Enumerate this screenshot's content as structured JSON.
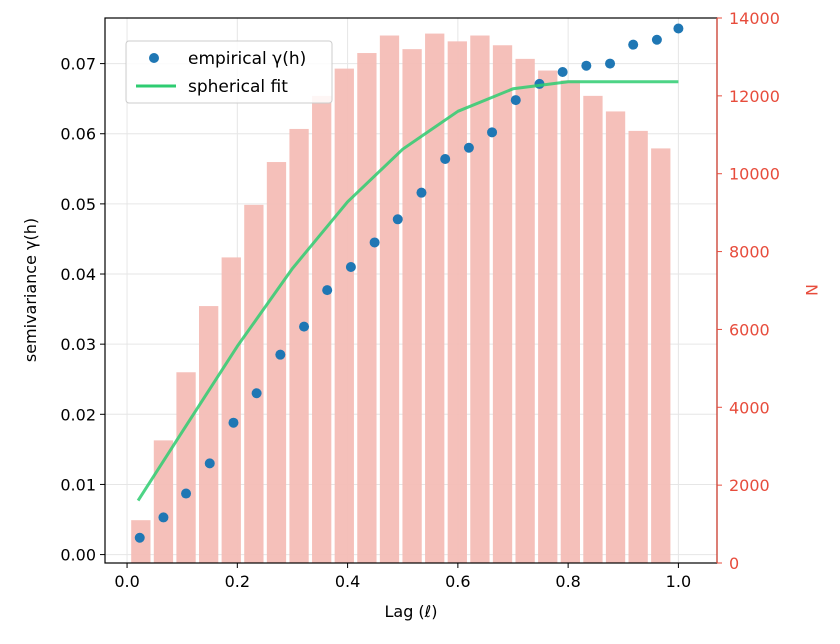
{
  "chart_data": {
    "type": "bar+scatter+line",
    "title": "",
    "xlabel": "Lag (ℓ)",
    "ylabel_left": "semivariance γ(h)",
    "ylabel_right": "N",
    "xlim": [
      -0.04,
      1.07
    ],
    "ylim_left": [
      -0.0012,
      0.0765
    ],
    "ylim_right": [
      0,
      14000
    ],
    "x_ticks": [
      "0.0",
      "0.2",
      "0.4",
      "0.6",
      "0.8",
      "1.0"
    ],
    "x_tick_values": [
      0,
      0.2,
      0.4,
      0.6,
      0.8,
      1.0
    ],
    "y_left_ticks": [
      "0.00",
      "0.01",
      "0.02",
      "0.03",
      "0.04",
      "0.05",
      "0.06",
      "0.07"
    ],
    "y_left_tick_values": [
      0,
      0.01,
      0.02,
      0.03,
      0.04,
      0.05,
      0.06,
      0.07
    ],
    "y_right_ticks": [
      "0",
      "2000",
      "4000",
      "6000",
      "8000",
      "10000",
      "12000",
      "14000"
    ],
    "y_right_tick_values": [
      0,
      2000,
      4000,
      6000,
      8000,
      10000,
      12000,
      14000
    ],
    "grid": true,
    "legend_position": "top-left",
    "colors": {
      "scatter": "#1f77b4",
      "fit": "#2ecc71",
      "bars": "#f4bdb6",
      "right_axis": "#e74c3c"
    },
    "bar_width": 0.035,
    "legend": [
      {
        "label": "empirical γ(h)",
        "kind": "marker"
      },
      {
        "label": "spherical fit",
        "kind": "line"
      }
    ],
    "series": [
      {
        "name": "N",
        "type": "bar",
        "axis": "right",
        "x": [
          0.025,
          0.066,
          0.107,
          0.148,
          0.189,
          0.23,
          0.271,
          0.312,
          0.353,
          0.394,
          0.435,
          0.476,
          0.517,
          0.558,
          0.599,
          0.64,
          0.681,
          0.722,
          0.763,
          0.804,
          0.845,
          0.886,
          0.927,
          0.968,
          1.009
        ],
        "values": [
          1100,
          3150,
          4900,
          6600,
          7850,
          9200,
          10300,
          11150,
          12000,
          12700,
          13100,
          13550,
          13200,
          13600,
          13400,
          13550,
          13300,
          12950,
          12650,
          12400,
          12000,
          11600,
          11100,
          10650,
          0
        ]
      },
      {
        "name": "empirical γ(h)",
        "type": "scatter",
        "axis": "left",
        "x": [
          0.023,
          0.066,
          0.107,
          0.15,
          0.193,
          0.235,
          0.278,
          0.321,
          0.363,
          0.406,
          0.449,
          0.491,
          0.534,
          0.577,
          0.62,
          0.662,
          0.705,
          0.748,
          0.79,
          0.833,
          0.876,
          0.918,
          0.961,
          1.0
        ],
        "values": [
          0.0024,
          0.0053,
          0.0087,
          0.013,
          0.0188,
          0.023,
          0.0285,
          0.0325,
          0.0377,
          0.041,
          0.0445,
          0.0478,
          0.0516,
          0.0564,
          0.058,
          0.0602,
          0.0648,
          0.0671,
          0.0688,
          0.0697,
          0.07,
          0.0727,
          0.0734,
          0.075
        ]
      },
      {
        "name": "spherical fit",
        "type": "line",
        "axis": "left",
        "x": [
          0.02,
          0.1,
          0.2,
          0.3,
          0.4,
          0.5,
          0.6,
          0.7,
          0.8,
          0.85,
          0.9,
          1.0
        ],
        "values": [
          0.0077,
          0.0175,
          0.0297,
          0.0408,
          0.0503,
          0.0578,
          0.0632,
          0.0664,
          0.0674,
          0.0674,
          0.0674,
          0.0674
        ]
      }
    ]
  }
}
